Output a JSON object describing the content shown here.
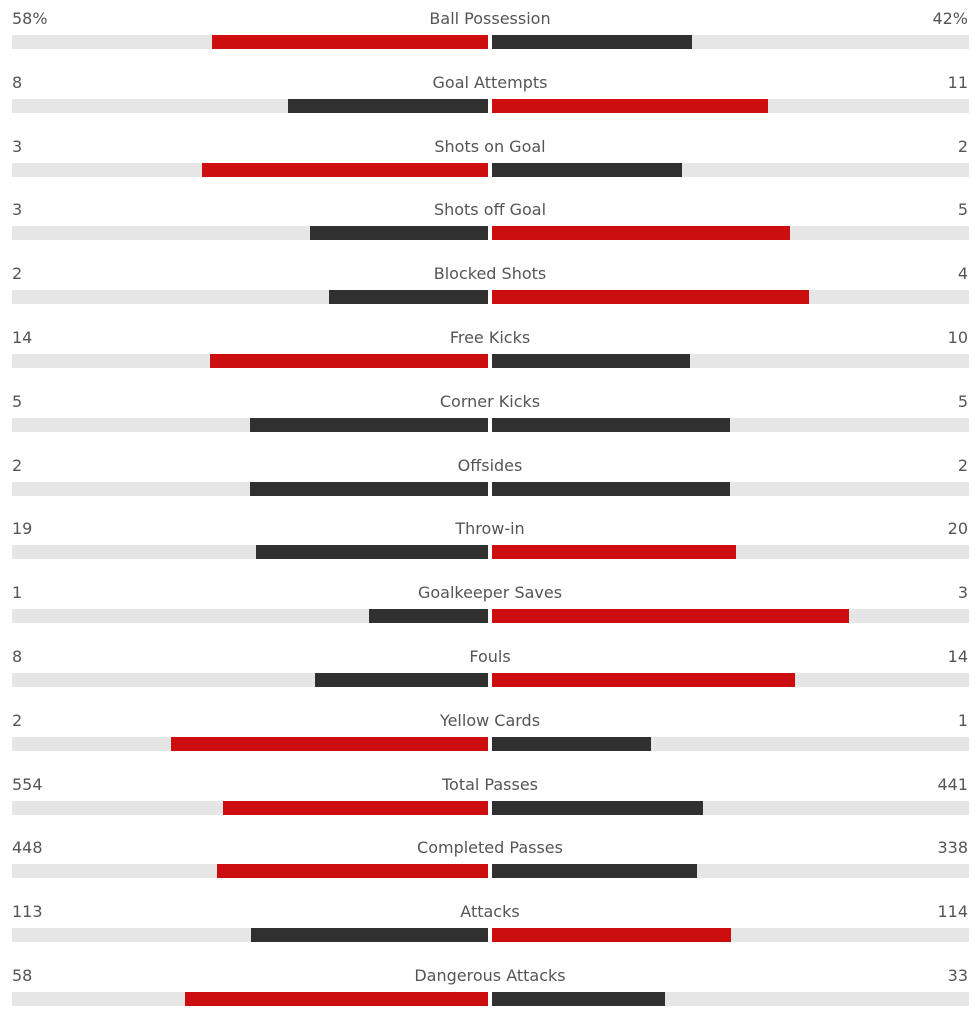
{
  "colors": {
    "leader": "#cc0e0e",
    "trailer": "#303030",
    "track": "#e6e6e6",
    "text": "#555555"
  },
  "chart_data": {
    "type": "bar",
    "orientation": "diverging-horizontal",
    "stats": [
      {
        "name": "Ball Possession",
        "home": 58,
        "away": 42,
        "home_label": "58%",
        "away_label": "42%"
      },
      {
        "name": "Goal Attempts",
        "home": 8,
        "away": 11,
        "home_label": "8",
        "away_label": "11"
      },
      {
        "name": "Shots on Goal",
        "home": 3,
        "away": 2,
        "home_label": "3",
        "away_label": "2"
      },
      {
        "name": "Shots off Goal",
        "home": 3,
        "away": 5,
        "home_label": "3",
        "away_label": "5"
      },
      {
        "name": "Blocked Shots",
        "home": 2,
        "away": 4,
        "home_label": "2",
        "away_label": "4"
      },
      {
        "name": "Free Kicks",
        "home": 14,
        "away": 10,
        "home_label": "14",
        "away_label": "10"
      },
      {
        "name": "Corner Kicks",
        "home": 5,
        "away": 5,
        "home_label": "5",
        "away_label": "5"
      },
      {
        "name": "Offsides",
        "home": 2,
        "away": 2,
        "home_label": "2",
        "away_label": "2"
      },
      {
        "name": "Throw-in",
        "home": 19,
        "away": 20,
        "home_label": "19",
        "away_label": "20"
      },
      {
        "name": "Goalkeeper Saves",
        "home": 1,
        "away": 3,
        "home_label": "1",
        "away_label": "3"
      },
      {
        "name": "Fouls",
        "home": 8,
        "away": 14,
        "home_label": "8",
        "away_label": "14"
      },
      {
        "name": "Yellow Cards",
        "home": 2,
        "away": 1,
        "home_label": "2",
        "away_label": "1"
      },
      {
        "name": "Total Passes",
        "home": 554,
        "away": 441,
        "home_label": "554",
        "away_label": "441"
      },
      {
        "name": "Completed Passes",
        "home": 448,
        "away": 338,
        "home_label": "448",
        "away_label": "338"
      },
      {
        "name": "Attacks",
        "home": 113,
        "away": 114,
        "home_label": "113",
        "away_label": "114"
      },
      {
        "name": "Dangerous Attacks",
        "home": 58,
        "away": 33,
        "home_label": "58",
        "away_label": "33"
      }
    ]
  }
}
